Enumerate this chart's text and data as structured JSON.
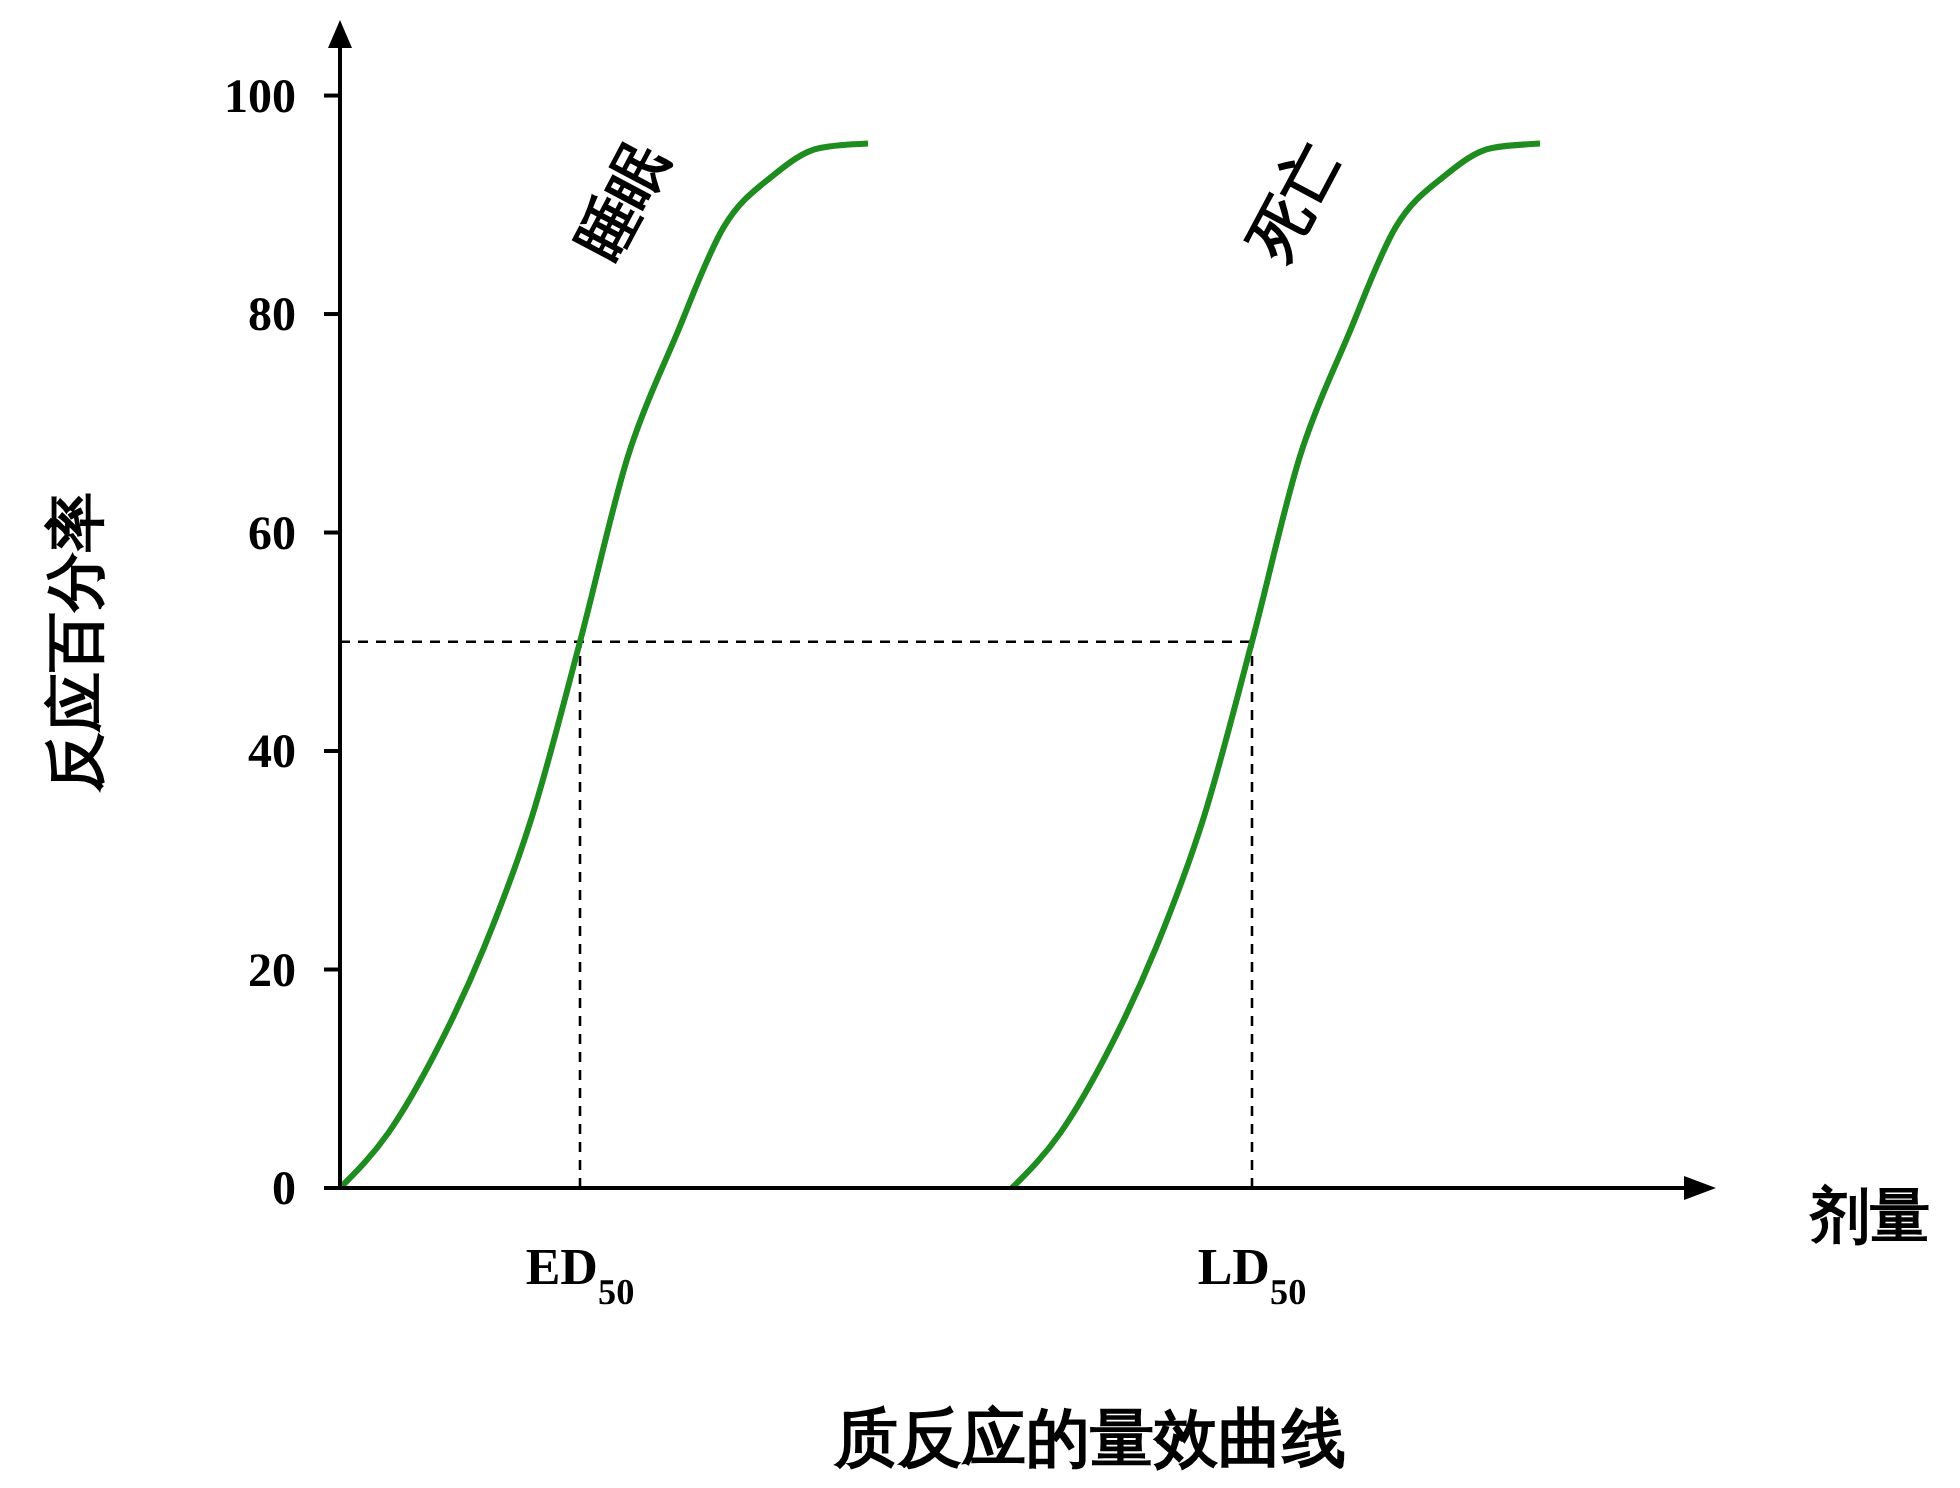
{
  "chart_data": {
    "type": "line",
    "title": "质反应的量效曲线",
    "xlabel": "剂量",
    "ylabel": "反应百分率",
    "categories": [
      null,
      null,
      null,
      null,
      null,
      "ED$_{50}$",
      null,
      null,
      null,
      null,
      null,
      null,
      null,
      null,
      null,
      null,
      null,
      null,
      null,
      "LD$_{50}$",
      null,
      null,
      null,
      null,
      null,
      null,
      null,
      null,
      null
    ],
    "ylim": [
      0,
      106
    ],
    "yticks": [
      0,
      20,
      40,
      60,
      80,
      100
    ],
    "series": [
      {
        "name": "睡眠",
        "color": "#1e8c1e",
        "values": [
          0,
          5,
          12.5,
          22,
          34,
          50,
          67,
          78,
          88,
          92.6,
          95.2,
          95.6,
          null,
          null,
          null,
          null,
          null,
          null,
          null,
          null,
          null,
          null,
          null,
          null,
          null,
          null,
          null,
          null,
          null
        ]
      },
      {
        "name": "死亡",
        "color": "#1e8c1e",
        "values": [
          null,
          null,
          null,
          null,
          null,
          null,
          null,
          null,
          null,
          null,
          null,
          null,
          null,
          null,
          0,
          5,
          12.5,
          22,
          34,
          50,
          67,
          78,
          88,
          92.6,
          95.2,
          95.6,
          null,
          null,
          null
        ]
      }
    ],
    "ref_lines": [
      {
        "axis": "y",
        "value": 50,
        "line_style": "dashed",
        "color": "#000000"
      },
      {
        "axis": "x",
        "value": "ED$_{50}$",
        "line_style": "dashed",
        "color": "#000000"
      },
      {
        "axis": "x",
        "value": "LD$_{50}$",
        "line_style": "dashed",
        "color": "#000000"
      }
    ],
    "grid": false,
    "legend": false,
    "marker": "none",
    "line_style": "solid"
  }
}
